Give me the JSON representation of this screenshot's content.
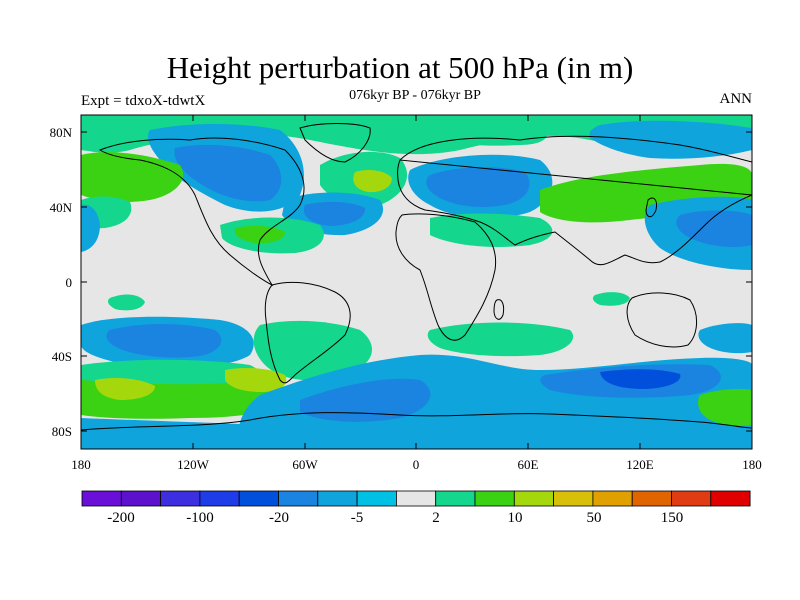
{
  "title": "Height perturbation at 500 hPa (in m)",
  "subtitle": "076kyr BP - 076kyr BP",
  "left_label": "Expt = tdxoX-tdwtX",
  "right_label": "ANN",
  "lat_ticks": [
    "80N",
    "40N",
    "0",
    "40S",
    "80S"
  ],
  "lon_ticks": [
    "180",
    "120W",
    "60W",
    "0",
    "60E",
    "120E",
    "180"
  ],
  "colorbar": {
    "colors": [
      "#6a0fd8",
      "#5c12cc",
      "#3d2ee0",
      "#1e3ce8",
      "#0050dc",
      "#1b83e0",
      "#10a4dc",
      "#00c0e4",
      "#e6e6e6",
      "#14d68c",
      "#3cd214",
      "#a4d80c",
      "#d8c008",
      "#e0a000",
      "#e06400",
      "#e03c14",
      "#e00000"
    ],
    "labels": [
      "-200",
      "-100",
      "-20",
      "-5",
      "2",
      "10",
      "50",
      "150"
    ]
  }
}
